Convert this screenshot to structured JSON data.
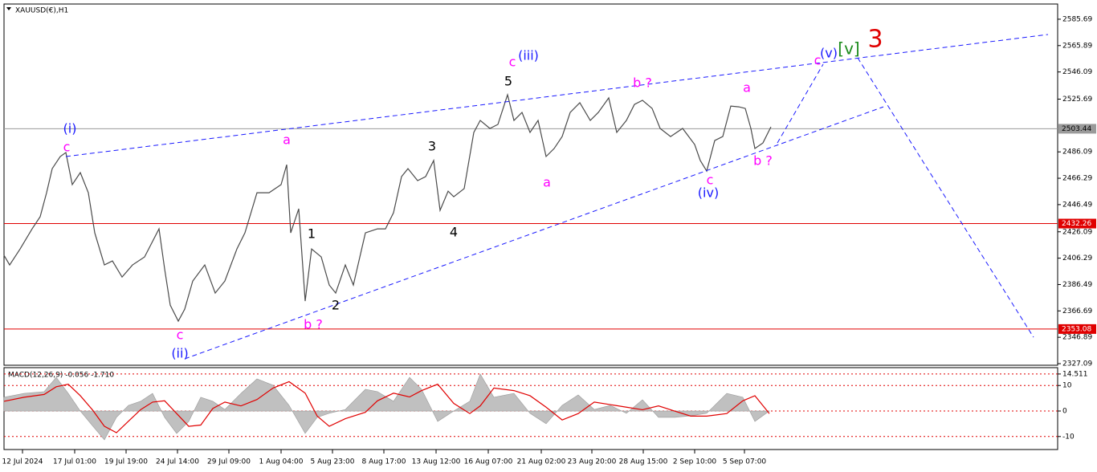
{
  "chart_data": [
    {
      "type": "line",
      "title": "XAUUSD(€),H1",
      "xlim": [
        0,
        1312
      ],
      "ylim": [
        2325.9,
        2597.1
      ],
      "yticks": [
        2585.69,
        2565.89,
        2546.09,
        2525.69,
        2486.09,
        2466.29,
        2446.49,
        2426.09,
        2406.29,
        2386.49,
        2366.69,
        2346.89,
        2327.09
      ],
      "grid": false,
      "x": [
        0,
        7,
        20,
        35,
        45,
        53,
        60,
        70,
        77,
        85,
        95,
        105,
        113,
        125,
        135,
        147,
        160,
        175,
        193,
        200,
        207,
        217,
        225,
        235,
        250,
        263,
        275,
        290,
        300,
        315,
        330,
        345,
        352,
        357,
        367,
        375,
        383,
        395,
        405,
        413,
        425,
        435,
        450,
        465,
        475,
        485,
        495,
        503,
        515,
        525,
        535,
        543,
        553,
        560,
        573,
        585,
        593,
        605,
        615,
        627,
        635,
        645,
        655,
        665,
        675,
        685,
        695,
        705,
        717,
        730,
        740,
        753,
        763,
        775,
        785,
        795,
        807,
        817,
        830,
        845,
        860,
        867,
        875,
        885,
        895,
        905,
        915,
        923,
        930,
        935,
        945,
        955
      ],
      "series": [
        {
          "color": "#4a4a4a",
          "values": [
            2408.4,
            2401.2,
            2413.2,
            2428.3,
            2437.4,
            2455.4,
            2473.5,
            2482.6,
            2485.6,
            2461.5,
            2470.5,
            2455.4,
            2425.3,
            2401.2,
            2404.2,
            2392.1,
            2401.2,
            2407.2,
            2428.3,
            2398.2,
            2371.0,
            2359.0,
            2368.0,
            2389.1,
            2401.2,
            2380.1,
            2389.1,
            2413.2,
            2425.3,
            2455.4,
            2455.4,
            2461.5,
            2476.5,
            2425.3,
            2443.4,
            2374.1,
            2413.2,
            2407.2,
            2386.1,
            2380.1,
            2401.2,
            2386.1,
            2425.3,
            2428.3,
            2428.3,
            2440.4,
            2467.5,
            2473.5,
            2464.5,
            2467.5,
            2479.6,
            2442.2,
            2456.6,
            2452.4,
            2458.5,
            2500.7,
            2509.7,
            2503.7,
            2506.7,
            2529.0,
            2509.7,
            2515.7,
            2500.7,
            2509.7,
            2482.6,
            2488.6,
            2497.6,
            2515.7,
            2523.0,
            2509.7,
            2515.7,
            2526.6,
            2500.7,
            2509.7,
            2521.7,
            2524.8,
            2518.7,
            2503.7,
            2497.6,
            2503.7,
            2491.6,
            2479.6,
            2471.7,
            2494.6,
            2497.6,
            2520.5,
            2519.9,
            2518.7,
            2503.7,
            2488.6,
            2492.8,
            2504.9
          ]
        }
      ],
      "levels": [
        {
          "value": 2503.44,
          "color": "#9a9a9a"
        },
        {
          "value": 2432.26,
          "color": "#e00000"
        },
        {
          "value": 2353.08,
          "color": "#e00000"
        }
      ],
      "trendlines": [
        {
          "color": "#1a1aff",
          "x": [
            77,
            1300
          ],
          "y": [
            2482.6,
            2574.2
          ]
        },
        {
          "color": "#1a1aff",
          "x": [
            225,
            1095
          ],
          "y": [
            2330.7,
            2519.9
          ]
        },
        {
          "color": "#1a1aff",
          "x": [
            963,
            1020
          ],
          "y": [
            2492.8,
            2551.9
          ]
        },
        {
          "color": "#1a1aff",
          "x": [
            1063,
            1282
          ],
          "y": [
            2556.7,
            2346.9
          ]
        }
      ],
      "annotations": [
        {
          "text": "(i)",
          "color": "#1a1aff",
          "x": 82,
          "y": 2503.1
        },
        {
          "text": "c",
          "color": "#ff00ff",
          "x": 78,
          "y": 2489.2
        },
        {
          "text": "a",
          "color": "#ff00ff",
          "x": 352,
          "y": 2494.6
        },
        {
          "text": "c",
          "color": "#ff00ff",
          "x": 219,
          "y": 2348.1
        },
        {
          "text": "(ii)",
          "color": "#1a1aff",
          "x": 219,
          "y": 2334.3
        },
        {
          "text": "1",
          "color": "#000000",
          "x": 383,
          "y": 2424.1
        },
        {
          "text": "2",
          "color": "#000000",
          "x": 413,
          "y": 2370.4
        },
        {
          "text": "b ?",
          "color": "#ff00ff",
          "x": 385,
          "y": 2356.0
        },
        {
          "text": "3",
          "color": "#000000",
          "x": 533,
          "y": 2489.8
        },
        {
          "text": "4",
          "color": "#000000",
          "x": 560,
          "y": 2425.3
        },
        {
          "text": "5",
          "color": "#000000",
          "x": 628,
          "y": 2538.6
        },
        {
          "text": "c",
          "color": "#ff00ff",
          "x": 633,
          "y": 2553.1
        },
        {
          "text": "(iii)",
          "color": "#1a1aff",
          "x": 653,
          "y": 2557.9
        },
        {
          "text": "a",
          "color": "#ff00ff",
          "x": 676,
          "y": 2462.7
        },
        {
          "text": "b ?",
          "color": "#ff00ff",
          "x": 795,
          "y": 2537.4
        },
        {
          "text": "a",
          "color": "#ff00ff",
          "x": 925,
          "y": 2533.8
        },
        {
          "text": "c",
          "color": "#ff00ff",
          "x": 879,
          "y": 2464.5
        },
        {
          "text": "(iv)",
          "color": "#1a1aff",
          "x": 877,
          "y": 2454.8
        },
        {
          "text": "b ?",
          "color": "#ff00ff",
          "x": 945,
          "y": 2478.9
        },
        {
          "text": "c",
          "color": "#ff00ff",
          "x": 1013,
          "y": 2554.3
        },
        {
          "text": "(v)",
          "color": "#1a1aff",
          "x": 1027,
          "y": 2559.7
        },
        {
          "text": "[v]",
          "color": "#1a8a1a",
          "x": 1052,
          "y": 2562.7
        },
        {
          "text": "3",
          "color": "#e00000",
          "x": 1085,
          "y": 2570.0
        }
      ]
    },
    {
      "type": "macd",
      "title": "MACD(12,26,9) -0.056 -1.710",
      "xlim": [
        0,
        1312
      ],
      "ylim": [
        -15.1,
        17.0
      ],
      "yticks": [
        14.511,
        10,
        0,
        -10
      ],
      "xticks": [
        {
          "value": 23,
          "label": "12 Jul 2024"
        },
        {
          "value": 88,
          "label": "17 Jul 01:00"
        },
        {
          "value": 152,
          "label": "19 Jul 19:00"
        },
        {
          "value": 216,
          "label": "24 Jul 14:00"
        },
        {
          "value": 280,
          "label": "29 Jul 09:00"
        },
        {
          "value": 345,
          "label": "1 Aug 04:00"
        },
        {
          "value": 409,
          "label": "5 Aug 23:00"
        },
        {
          "value": 473,
          "label": "8 Aug 17:00"
        },
        {
          "value": 538,
          "label": "13 Aug 12:00"
        },
        {
          "value": 603,
          "label": "16 Aug 07:00"
        },
        {
          "value": 669,
          "label": "21 Aug 02:00"
        },
        {
          "value": 732,
          "label": "23 Aug 20:00"
        },
        {
          "value": 796,
          "label": "28 Aug 15:00"
        },
        {
          "value": 860,
          "label": "2 Sep 10:00"
        },
        {
          "value": 922,
          "label": "5 Sep 07:00"
        }
      ],
      "x": [
        0,
        25,
        50,
        65,
        80,
        95,
        110,
        125,
        140,
        155,
        170,
        185,
        200,
        215,
        230,
        245,
        260,
        275,
        295,
        315,
        335,
        355,
        375,
        390,
        405,
        425,
        450,
        465,
        485,
        505,
        520,
        540,
        560,
        580,
        593,
        610,
        635,
        655,
        675,
        695,
        715,
        735,
        755,
        775,
        795,
        815,
        835,
        855,
        875,
        900,
        920,
        935,
        953
      ],
      "series": [
        {
          "type": "area",
          "color": "#c0c0c0",
          "values": [
            5.4,
            6.9,
            7.6,
            13.2,
            6.9,
            0,
            -5.7,
            -11.3,
            -2.5,
            2.2,
            3.8,
            6.9,
            -2.5,
            -8.8,
            -4.1,
            5.4,
            3.8,
            0.6,
            6.9,
            12.6,
            10.1,
            2.2,
            -8.8,
            -2.5,
            -0.9,
            0.6,
            8.5,
            7.6,
            3.8,
            13.2,
            8.5,
            -4.1,
            0,
            3.8,
            14.5,
            5.4,
            6.9,
            -0.9,
            -5.0,
            2.2,
            6.3,
            0.6,
            2.2,
            -0.9,
            4.4,
            -2.5,
            -2.5,
            -1.9,
            -0.9,
            6.9,
            5.4,
            -4.1,
            0
          ]
        },
        {
          "type": "line",
          "color": "#e00000",
          "values": [
            3.8,
            5.4,
            6.5,
            9.5,
            10.5,
            6.0,
            0.5,
            -6.0,
            -8.5,
            -4.0,
            0.5,
            3.5,
            4.0,
            -1.0,
            -6.0,
            -5.5,
            1.0,
            3.5,
            2.0,
            4.5,
            9.0,
            11.5,
            7.0,
            -2.0,
            -6.0,
            -3.0,
            -0.5,
            4.0,
            7.0,
            5.5,
            8.0,
            10.5,
            3.0,
            -1.0,
            2.0,
            9.0,
            8.0,
            6.0,
            1.5,
            -3.5,
            -1.0,
            3.5,
            2.5,
            1.5,
            0.5,
            2.0,
            0.0,
            -2.0,
            -2.0,
            -1.0,
            4.0,
            6.0,
            -1.0
          ]
        }
      ]
    }
  ]
}
